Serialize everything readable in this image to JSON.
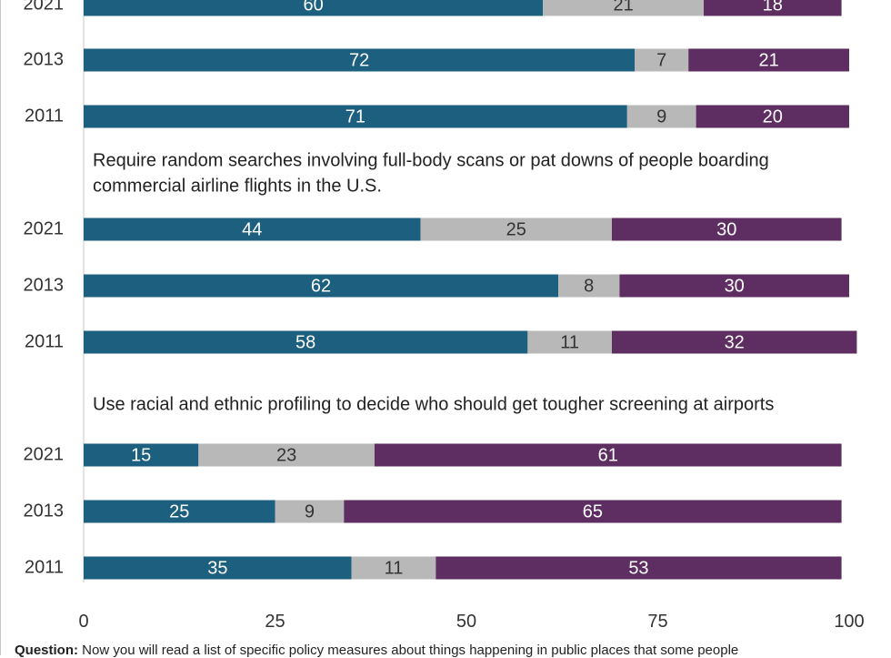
{
  "chart_data": {
    "type": "bar",
    "orientation": "horizontal",
    "stacked": true,
    "xlim": [
      0,
      100
    ],
    "x_ticks": [
      0,
      25,
      50,
      75,
      100
    ],
    "grid": false,
    "colors": [
      "#1c5f7f",
      "#b8b8b8",
      "#5e2e63"
    ],
    "groups": [
      {
        "title": "",
        "rows": [
          {
            "year": "2021",
            "values": [
              60,
              21,
              18
            ]
          },
          {
            "year": "2013",
            "values": [
              72,
              7,
              21
            ]
          },
          {
            "year": "2011",
            "values": [
              71,
              9,
              20
            ]
          }
        ]
      },
      {
        "title": "Require random searches involving full-body scans or pat downs of people boarding commercial airline flights in the U.S.",
        "title_lines": [
          "Require random searches involving full-body scans or pat downs of people boarding",
          "commercial airline flights in the U.S."
        ],
        "rows": [
          {
            "year": "2021",
            "values": [
              44,
              25,
              30
            ]
          },
          {
            "year": "2013",
            "values": [
              62,
              8,
              30
            ]
          },
          {
            "year": "2011",
            "values": [
              58,
              11,
              32
            ]
          }
        ]
      },
      {
        "title": "Use racial and ethnic profiling to decide who should get tougher screening at airports",
        "title_lines": [
          "Use racial and ethnic profiling to decide who should get tougher screening at airports"
        ],
        "rows": [
          {
            "year": "2021",
            "values": [
              15,
              23,
              61
            ]
          },
          {
            "year": "2013",
            "values": [
              25,
              9,
              65
            ]
          },
          {
            "year": "2011",
            "values": [
              35,
              11,
              53
            ]
          }
        ]
      }
    ]
  },
  "footnote": {
    "label": "Question:",
    "text": "Now you will read a list of specific policy measures about things happening in public places that some people"
  }
}
